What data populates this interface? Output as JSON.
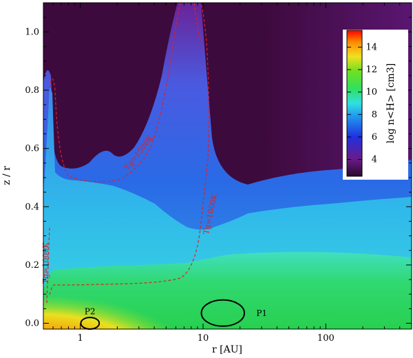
{
  "chart_data": {
    "type": "heatmap",
    "xlabel": "r [AU]",
    "ylabel": "z / r",
    "x_scale": "log",
    "x_ticks": [
      1,
      10,
      100
    ],
    "x_tick_labels": [
      "1",
      "10",
      "100"
    ],
    "xlim": [
      0.5,
      500
    ],
    "y_ticks": [
      0.0,
      0.2,
      0.4,
      0.6,
      0.8,
      1.0
    ],
    "y_tick_labels": [
      "0.0",
      "0.2",
      "0.4",
      "0.6",
      "0.8",
      "1.0"
    ],
    "ylim": [
      -0.02,
      1.1
    ],
    "colorbar": {
      "label": "log n<H> [cm3]",
      "min": 2.5,
      "max": 15.5,
      "ticks": [
        4,
        6,
        8,
        10,
        12,
        14
      ],
      "tick_labels": [
        "4",
        "6",
        "8",
        "10",
        "12",
        "14"
      ],
      "placement": "top-right"
    },
    "contours": [
      {
        "name": "Tg=1000K",
        "style": "dashed",
        "color": "#e02020"
      },
      {
        "name": "Tg=1500K",
        "style": "dashed",
        "color": "#e02020"
      }
    ],
    "annotations": [
      {
        "text": "P1",
        "r": 15,
        "z": 0.03
      },
      {
        "text": "P2",
        "r": 1.2,
        "z": 0.0
      },
      {
        "text": "Tg=1000K",
        "r": 0.52,
        "z": 0.23
      },
      {
        "text": "Tg=1500K",
        "r": 3.1,
        "z": 0.58
      },
      {
        "text": "Tg=1000K",
        "r": 10,
        "z": 0.42
      }
    ],
    "regions": [
      {
        "name": "P1",
        "r_center": 14.5,
        "z_center": 0.035,
        "r_width_dex": 0.35,
        "dz": 0.09
      },
      {
        "name": "P2",
        "r_center": 1.2,
        "z_center": 0.0,
        "r_width_dex": 0.15,
        "dz": 0.04
      }
    ],
    "colors": {
      "dark_bg": "#3d0a3d",
      "purple": "#7a2a9a",
      "blue": "#2a50e6",
      "cyan": "#30c8e8",
      "green": "#20d460",
      "red": "#e02020"
    }
  }
}
